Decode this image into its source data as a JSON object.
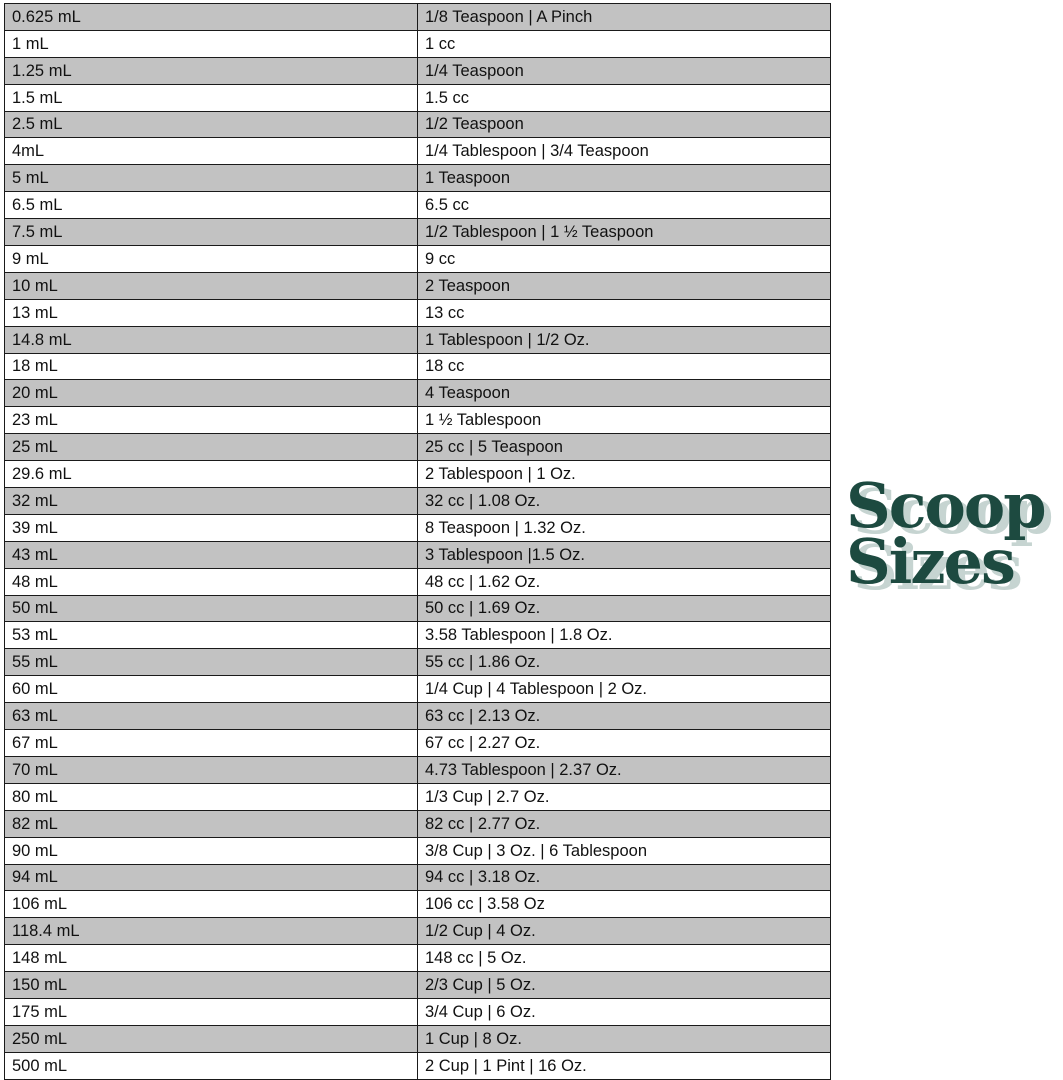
{
  "table": {
    "rows": [
      [
        "0.625 mL",
        "1/8 Teaspoon | A Pinch"
      ],
      [
        "1 mL",
        "1 cc"
      ],
      [
        "1.25 mL",
        "1/4 Teaspoon"
      ],
      [
        "1.5 mL",
        "1.5 cc"
      ],
      [
        "2.5 mL",
        "1/2 Teaspoon"
      ],
      [
        "4mL",
        "1/4 Tablespoon | 3/4 Teaspoon"
      ],
      [
        "5 mL",
        "1 Teaspoon"
      ],
      [
        "6.5 mL",
        "6.5 cc"
      ],
      [
        "7.5 mL",
        "1/2 Tablespoon | 1 ½ Teaspoon"
      ],
      [
        "9 mL",
        "9 cc"
      ],
      [
        "10 mL",
        "2 Teaspoon"
      ],
      [
        "13 mL",
        "13 cc"
      ],
      [
        "14.8 mL",
        "1 Tablespoon | 1/2 Oz."
      ],
      [
        "18 mL",
        "18 cc"
      ],
      [
        "20 mL",
        "4 Teaspoon"
      ],
      [
        "23 mL",
        "1 ½ Tablespoon"
      ],
      [
        "25 mL",
        "25 cc | 5 Teaspoon"
      ],
      [
        "29.6 mL",
        "2 Tablespoon | 1 Oz."
      ],
      [
        "32 mL",
        "32 cc | 1.08 Oz."
      ],
      [
        "39 mL",
        "8 Teaspoon | 1.32 Oz."
      ],
      [
        "43 mL",
        "3 Tablespoon |1.5 Oz."
      ],
      [
        "48 mL",
        "48 cc | 1.62 Oz."
      ],
      [
        "50 mL",
        "50 cc | 1.69 Oz."
      ],
      [
        "53 mL",
        "3.58 Tablespoon | 1.8 Oz."
      ],
      [
        "55 mL",
        "55 cc | 1.86 Oz."
      ],
      [
        "60 mL",
        "1/4 Cup | 4 Tablespoon | 2 Oz."
      ],
      [
        "63 mL",
        "63 cc | 2.13 Oz."
      ],
      [
        "67 mL",
        "67 cc | 2.27 Oz."
      ],
      [
        "70 mL",
        "4.73 Tablespoon | 2.37 Oz."
      ],
      [
        "80 mL",
        "1/3 Cup | 2.7 Oz."
      ],
      [
        "82 mL",
        "82 cc | 2.77 Oz."
      ],
      [
        "90 mL",
        "3/8 Cup | 3 Oz. | 6 Tablespoon"
      ],
      [
        "94 mL",
        "94 cc | 3.18 Oz."
      ],
      [
        "106 mL",
        "106 cc | 3.58 Oz"
      ],
      [
        "118.4 mL",
        "1/2 Cup | 4 Oz."
      ],
      [
        "148 mL",
        "148 cc | 5 Oz."
      ],
      [
        "150 mL",
        "2/3 Cup | 5 Oz."
      ],
      [
        "175 mL",
        "3/4 Cup | 6 Oz."
      ],
      [
        "250 mL",
        "1 Cup | 8 Oz."
      ],
      [
        "500 mL",
        "2 Cup | 1 Pint | 16 Oz."
      ]
    ]
  },
  "logo": {
    "line1": "Scoop",
    "line2": "Sizes",
    "color": "#1d4a40",
    "shadow_color": "#c6d4d1"
  },
  "colors": {
    "stripe": "#c2c2c2"
  }
}
